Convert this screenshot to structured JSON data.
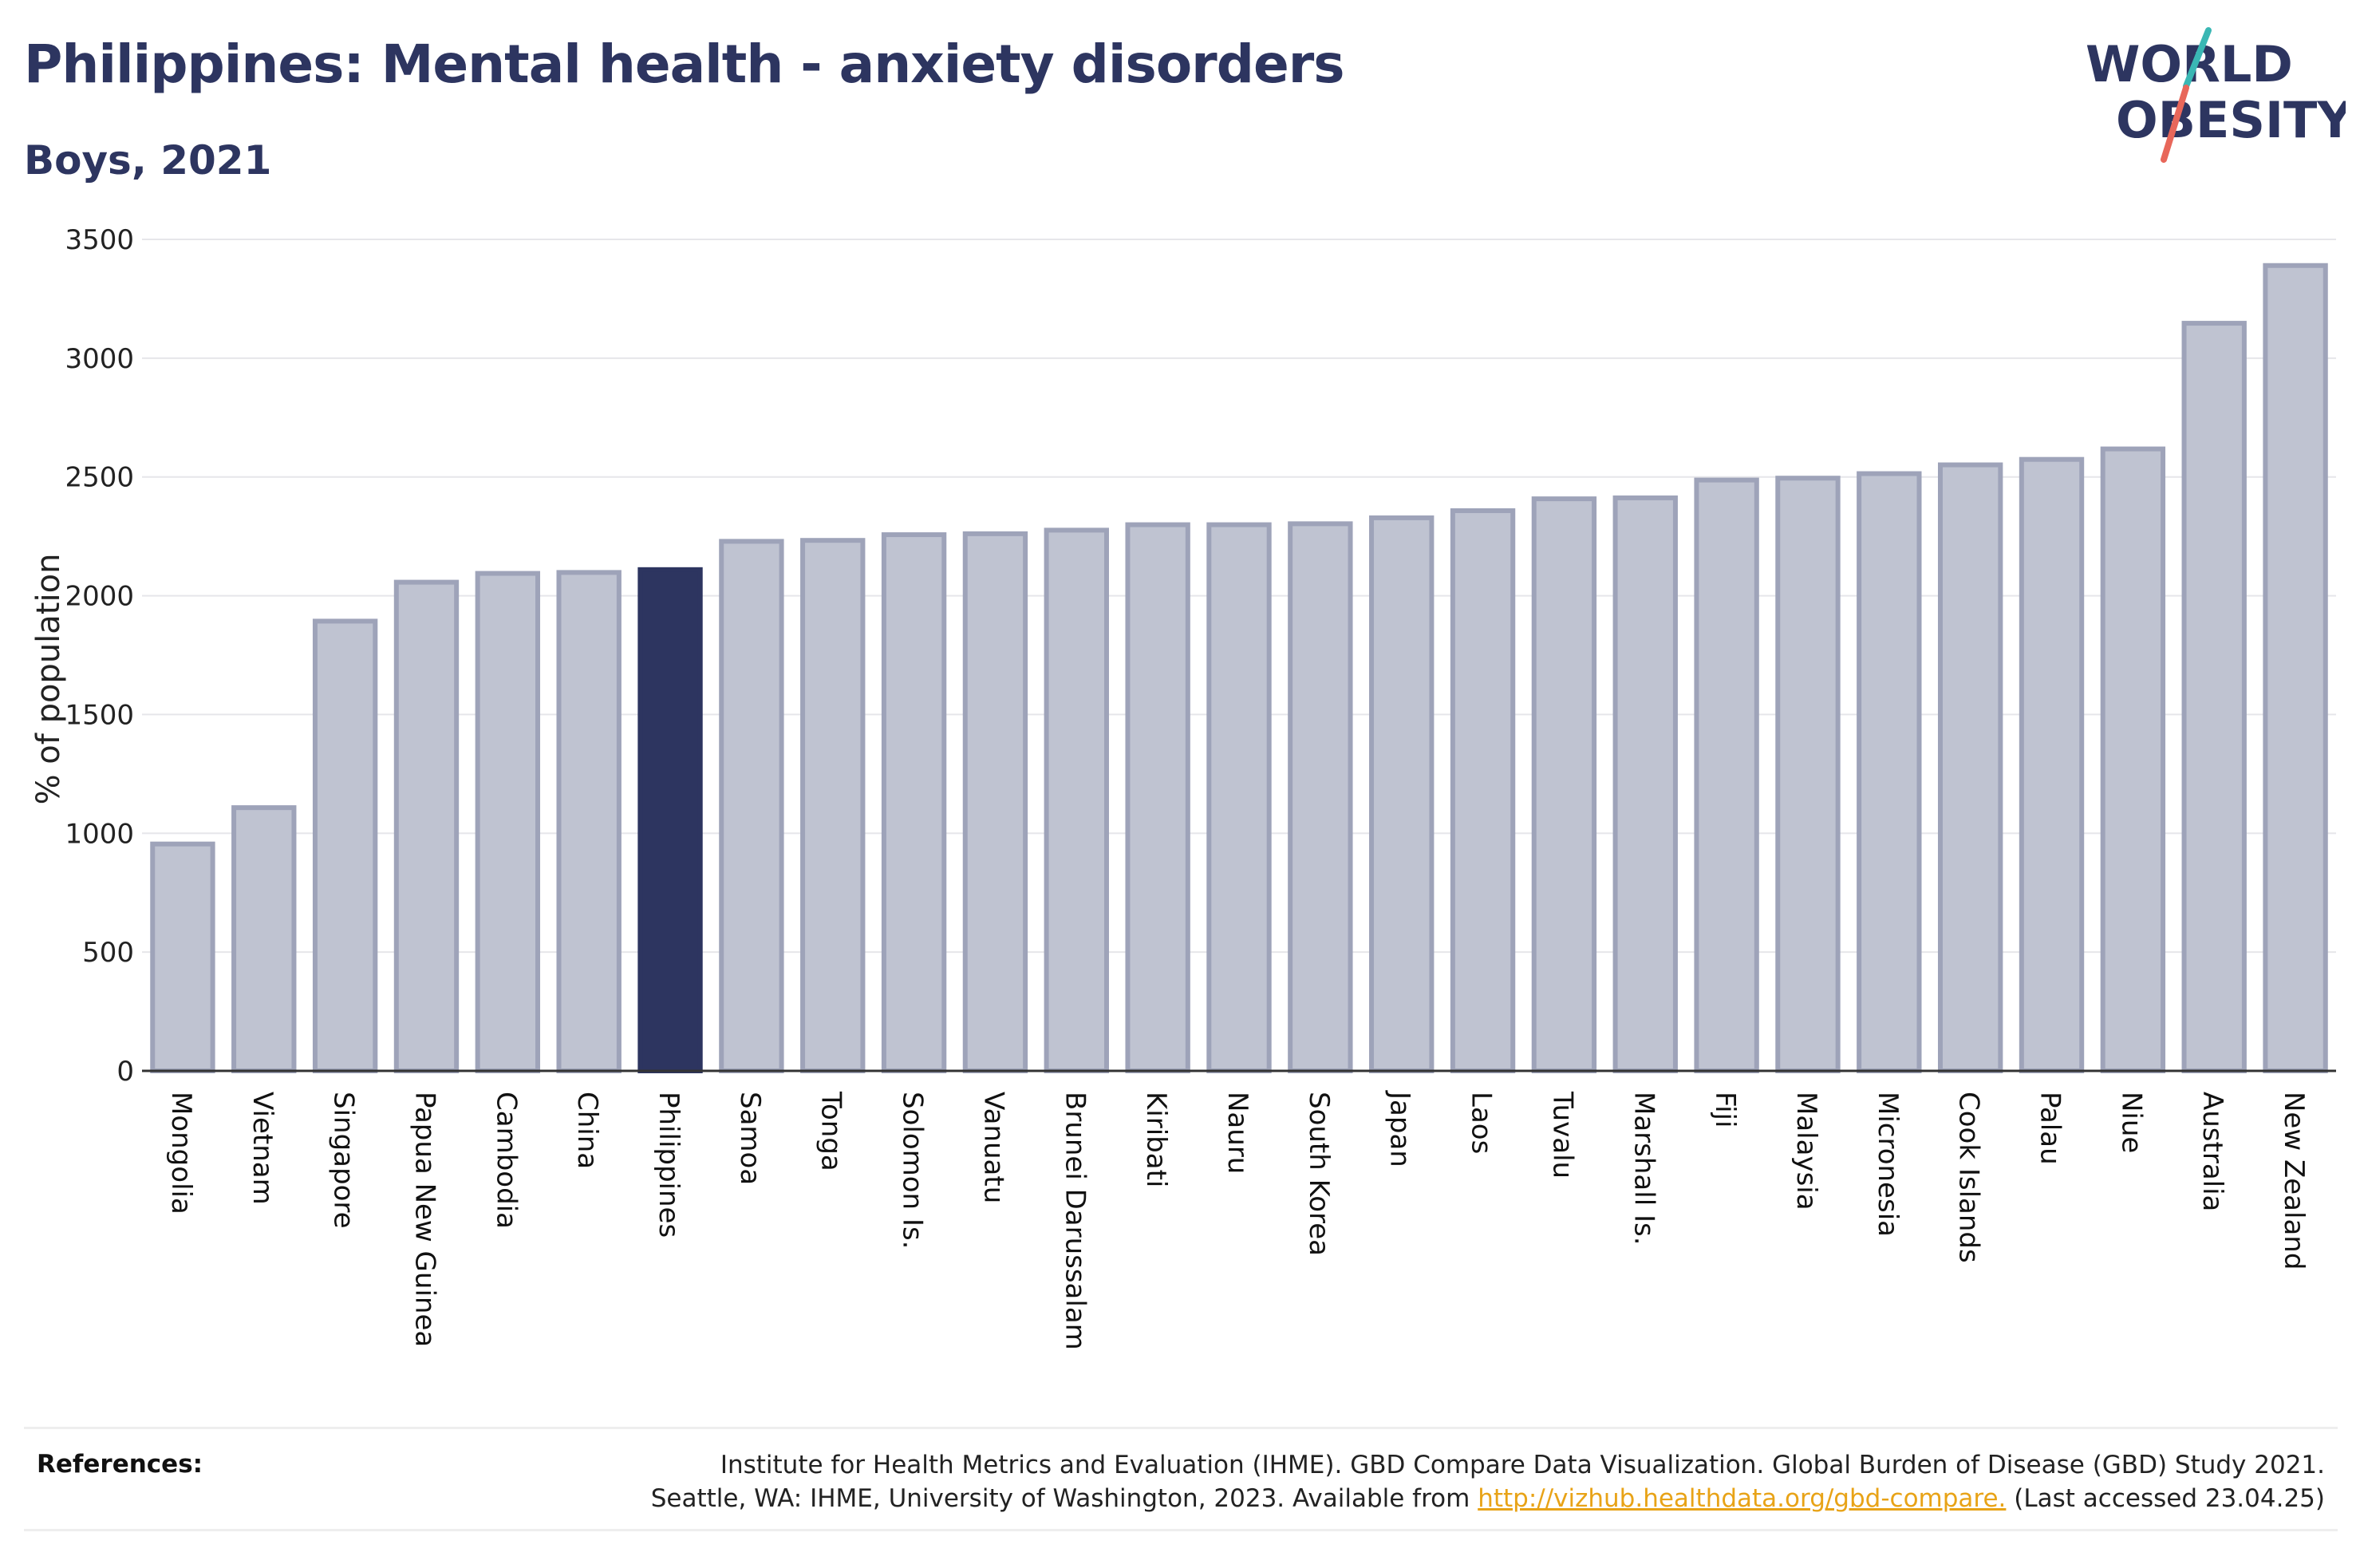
{
  "header": {
    "title": "Philippines: Mental health - anxiety disorders",
    "subtitle": "Boys, 2021"
  },
  "logo": {
    "line1": "WORLD",
    "line2": "OBESITY",
    "accent_colors": [
      "#3ab7b4",
      "#e8675a"
    ]
  },
  "colors": {
    "bar": "#bfc3d1",
    "bar_edge": "#9ea3b9",
    "highlight": "#2d3560",
    "grid": "#e6e6ea",
    "axis": "#333333"
  },
  "chart_data": {
    "type": "bar",
    "title": "Philippines: Mental health - anxiety disorders",
    "subtitle": "Boys, 2021",
    "ylabel": "% of population",
    "xlabel": "",
    "ylim": [
      0,
      3500
    ],
    "yticks": [
      0,
      500,
      1000,
      1500,
      2000,
      2500,
      3000,
      3500
    ],
    "grid": true,
    "highlight": "Philippines",
    "categories": [
      "Mongolia",
      "Vietnam",
      "Singapore",
      "Papua New Guinea",
      "Cambodia",
      "China",
      "Philippines",
      "Samoa",
      "Tonga",
      "Solomon Is.",
      "Vanuatu",
      "Brunei Darussalam",
      "Kiribati",
      "Nauru",
      "South Korea",
      "Japan",
      "Laos",
      "Tuvalu",
      "Marshall Is.",
      "Fiji",
      "Malaysia",
      "Micronesia",
      "Cook Islands",
      "Palau",
      "Niue",
      "Australia",
      "New Zealand"
    ],
    "values": [
      955,
      1108,
      1893,
      2057,
      2094,
      2098,
      2110,
      2229,
      2233,
      2257,
      2261,
      2276,
      2299,
      2299,
      2303,
      2328,
      2358,
      2408,
      2412,
      2487,
      2495,
      2514,
      2551,
      2574,
      2618,
      3147,
      3390
    ]
  },
  "references": {
    "label": "References:",
    "line1": "Institute for Health Metrics and Evaluation (IHME). GBD Compare Data Visualization. Global Burden of Disease (GBD) Study 2021.",
    "line2_prefix": "Seattle, WA: IHME, University of Washington, 2023. Available from ",
    "link": "http://vizhub.healthdata.org/gbd-compare.",
    "line2_suffix": " (Last accessed 23.04.25)"
  }
}
